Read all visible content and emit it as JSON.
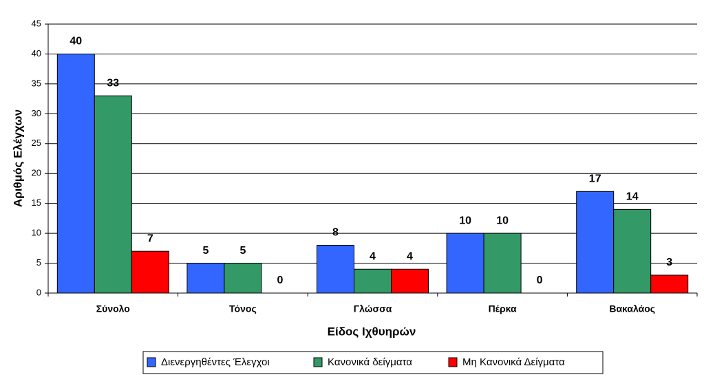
{
  "chart_data": {
    "type": "bar",
    "x_label": "Είδος Ιχθυηρών",
    "y_label": "Αριθμός Ελέγχων",
    "categories": [
      "Σύνολο",
      "Τόνος",
      "Γλώσσα",
      "Πέρκα",
      "Βακαλάος"
    ],
    "series": [
      {
        "name": "Διενεργηθέντες Έλεγχοι",
        "color": "#3366ff",
        "values": [
          40,
          5,
          8,
          10,
          17
        ]
      },
      {
        "name": "Κανονικά δείγματα",
        "color": "#339966",
        "values": [
          33,
          5,
          4,
          10,
          14
        ]
      },
      {
        "name": "Μη Κανονικά Δείγματα",
        "color": "#ff0000",
        "values": [
          7,
          0,
          4,
          0,
          3
        ]
      }
    ],
    "ylim": [
      0,
      45
    ],
    "yticks": [
      0,
      5,
      10,
      15,
      20,
      25,
      30,
      35,
      40,
      45
    ],
    "grid": true,
    "legend": "bottom"
  }
}
